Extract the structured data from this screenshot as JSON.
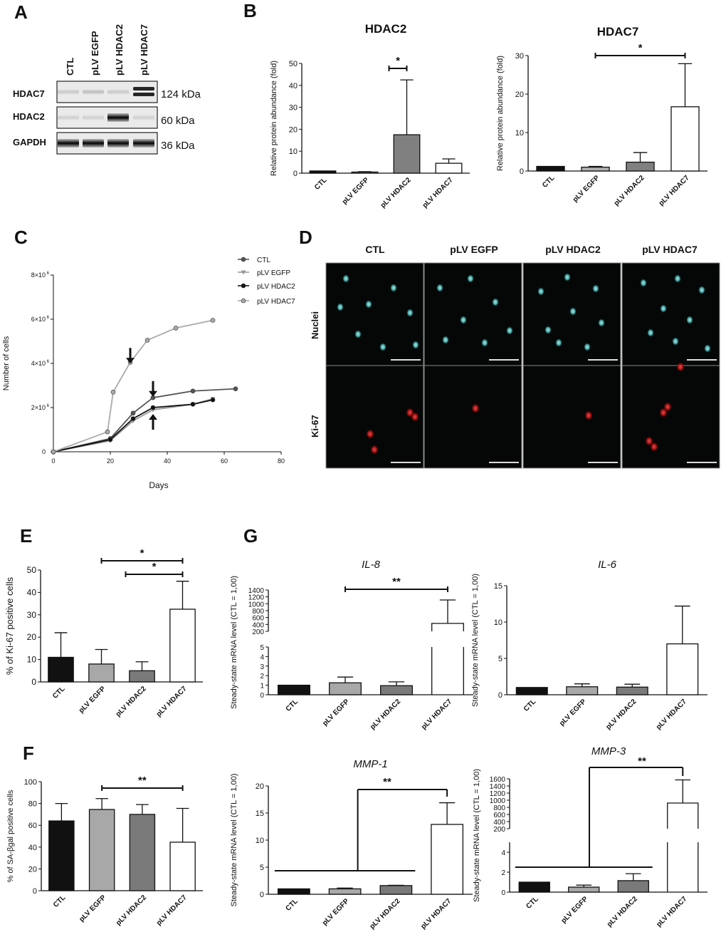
{
  "panels": {
    "A": "A",
    "B": "B",
    "C": "C",
    "D": "D",
    "E": "E",
    "F": "F",
    "G": "G"
  },
  "western_blot": {
    "lanes": [
      "CTL",
      "pLV EGFP",
      "pLV HDAC2",
      "pLV HDAC7"
    ],
    "proteins": [
      "HDAC7",
      "HDAC2",
      "GAPDH"
    ],
    "sizes": [
      "124 kDa",
      "60 kDa",
      "36 kDa"
    ],
    "band_intensity": {
      "HDAC7": [
        0.15,
        0.2,
        0.15,
        1.0
      ],
      "HDAC2": [
        0.1,
        0.1,
        1.0,
        0.1
      ],
      "GAPDH": [
        1.0,
        1.0,
        1.0,
        1.0
      ]
    }
  },
  "immunofluorescence": {
    "columns": [
      "CTL",
      "pLV EGFP",
      "pLV HDAC2",
      "pLV HDAC7"
    ],
    "rows": [
      "Nuclei",
      "Ki-67"
    ]
  },
  "chart_data": [
    {
      "id": "B-HDAC2",
      "type": "bar",
      "title": "HDAC2",
      "ylabel": "Relative protein abundance (fold)",
      "categories": [
        "CTL",
        "pLV EGFP",
        "pLV HDAC2",
        "pLV HDAC7"
      ],
      "values": [
        1,
        0.5,
        17.5,
        4.5
      ],
      "errors": [
        0,
        0.2,
        25,
        2
      ],
      "ylim": [
        0,
        50
      ],
      "yticks": [
        0,
        10,
        20,
        30,
        40,
        50
      ],
      "colors": [
        "#111111",
        "#b0b0b0",
        "#808080",
        "#ffffff"
      ],
      "significance": [
        {
          "from": 1,
          "to": 2,
          "label": "*"
        }
      ]
    },
    {
      "id": "B-HDAC7",
      "type": "bar",
      "title": "HDAC7",
      "ylabel": "Relative protein abundance (fold)",
      "categories": [
        "CTL",
        "pLV EGFP",
        "pLV HDAC2",
        "pLV HDAC7"
      ],
      "values": [
        1.2,
        1,
        2.3,
        16.7
      ],
      "errors": [
        0,
        0.2,
        2.5,
        11.2
      ],
      "ylim": [
        0,
        30
      ],
      "yticks": [
        0,
        10,
        20,
        30
      ],
      "colors": [
        "#111111",
        "#b0b0b0",
        "#808080",
        "#ffffff"
      ],
      "significance": [
        {
          "from": 1,
          "to": 3,
          "label": "*"
        }
      ]
    },
    {
      "id": "C",
      "type": "line",
      "xlabel": "Days",
      "ylabel": "Number of cells",
      "xlim": [
        0,
        80
      ],
      "xticks": [
        0,
        20,
        40,
        60,
        80
      ],
      "ylim": [
        0,
        8000000
      ],
      "ytick_values": [
        0,
        2000000,
        4000000,
        6000000,
        8000000
      ],
      "ytick_labels": [
        {
          "base": "0",
          "exp": ""
        },
        {
          "base": "2×10",
          "exp": "6"
        },
        {
          "base": "4×10",
          "exp": "6"
        },
        {
          "base": "6×10",
          "exp": "6"
        },
        {
          "base": "8×10",
          "exp": "6"
        }
      ],
      "series": [
        {
          "name": "CTL",
          "color": "#555555",
          "marker": "circle",
          "x": [
            0,
            20,
            28,
            35,
            49,
            64
          ],
          "y": [
            0,
            600000,
            1750000,
            2450000,
            2750000,
            2850000
          ]
        },
        {
          "name": "pLV EGFP",
          "color": "#999999",
          "marker": "triangle",
          "x": [
            0,
            20,
            28,
            35,
            49,
            56
          ],
          "y": [
            0,
            500000,
            1400000,
            1900000,
            2150000,
            2400000
          ]
        },
        {
          "name": "pLV HDAC2",
          "color": "#111111",
          "marker": "circle",
          "x": [
            0,
            20,
            28,
            35,
            49,
            56
          ],
          "y": [
            0,
            550000,
            1500000,
            2000000,
            2150000,
            2350000
          ]
        },
        {
          "name": "pLV HDAC7",
          "color": "#aaaaaa",
          "marker": "circle",
          "x": [
            0,
            19,
            21,
            27,
            33,
            43,
            56
          ],
          "y": [
            0,
            900000,
            2700000,
            4050000,
            5050000,
            5600000,
            5950000
          ]
        }
      ],
      "arrows": [
        {
          "x": 27,
          "y": 4700000,
          "dir": "down"
        },
        {
          "x": 35,
          "y": 3200000,
          "dir": "down"
        },
        {
          "x": 35,
          "y": 1000000,
          "dir": "up"
        }
      ]
    },
    {
      "id": "E",
      "type": "bar",
      "ylabel": "% of Ki-67 positive cells",
      "categories": [
        "CTL",
        "pLV EGFP",
        "pLV HDAC2",
        "pLV HDAC7"
      ],
      "values": [
        11,
        8,
        5,
        32.5
      ],
      "errors": [
        11,
        6.5,
        4,
        12.5
      ],
      "ylim": [
        0,
        50
      ],
      "yticks": [
        0,
        10,
        20,
        30,
        40,
        50
      ],
      "colors": [
        "#111111",
        "#a8a8a8",
        "#7a7a7a",
        "#ffffff"
      ],
      "significance": [
        {
          "from": 1,
          "to": 3,
          "label": "*"
        },
        {
          "from": 2,
          "to": 3,
          "label": "*"
        }
      ]
    },
    {
      "id": "F",
      "type": "bar",
      "ylabel": "% of SA-βgal positive cells",
      "categories": [
        "CTL",
        "pLV EGFP",
        "pLV HDAC2",
        "pLV HDAC7"
      ],
      "values": [
        64,
        74.5,
        70,
        44.5
      ],
      "errors": [
        16,
        10,
        9,
        31
      ],
      "ylim": [
        0,
        100
      ],
      "yticks": [
        0,
        20,
        40,
        60,
        80,
        100
      ],
      "colors": [
        "#111111",
        "#a8a8a8",
        "#7a7a7a",
        "#ffffff"
      ],
      "significance": [
        {
          "from": 1,
          "to": 3,
          "label": "**"
        }
      ]
    },
    {
      "id": "G-IL8",
      "type": "bar",
      "title": "IL-8",
      "ylabel": "Steady-state mRNA level (CTL = 1,00)",
      "categories": [
        "CTL",
        "pLV EGFP",
        "pLV HDAC2",
        "pLV HDAC7"
      ],
      "values": [
        1,
        1.25,
        0.95,
        430
      ],
      "errors": [
        0,
        0.6,
        0.4,
        680
      ],
      "broken_axis": true,
      "lower_ylim": [
        0,
        5
      ],
      "lower_yticks": [
        0,
        1,
        2,
        3,
        4,
        5
      ],
      "upper_ylim": [
        200,
        1400
      ],
      "upper_yticks": [
        200,
        400,
        600,
        800,
        1000,
        1200,
        1400
      ],
      "colors": [
        "#111111",
        "#a8a8a8",
        "#7a7a7a",
        "#ffffff"
      ],
      "significance": [
        {
          "from": 1,
          "to": 3,
          "label": "**"
        }
      ]
    },
    {
      "id": "G-IL6",
      "type": "bar",
      "title": "IL-6",
      "ylabel": "Steady-state mRNA level (CTL = 1,00)",
      "categories": [
        "CTL",
        "pLV EGFP",
        "pLV HDAC2",
        "pLV HDAC7"
      ],
      "values": [
        1,
        1.1,
        1.05,
        7
      ],
      "errors": [
        0,
        0.4,
        0.4,
        5.2
      ],
      "ylim": [
        0,
        15
      ],
      "yticks": [
        0,
        5,
        10,
        15
      ],
      "colors": [
        "#111111",
        "#a8a8a8",
        "#7a7a7a",
        "#ffffff"
      ],
      "significance": []
    },
    {
      "id": "G-MMP1",
      "type": "bar",
      "title": "MMP-1",
      "ylabel": "Steady-state mRNA level (CTL = 1,00)",
      "categories": [
        "CTL",
        "pLV EGFP",
        "pLV HDAC2",
        "pLV HDAC7"
      ],
      "values": [
        1,
        1,
        1.6,
        12.9
      ],
      "errors": [
        0,
        0.15,
        0.05,
        4
      ],
      "ylim": [
        0,
        20
      ],
      "yticks": [
        0,
        5,
        10,
        15,
        20
      ],
      "colors": [
        "#111111",
        "#a8a8a8",
        "#7a7a7a",
        "#ffffff"
      ],
      "significance": [
        {
          "group": [
            0,
            2
          ],
          "to": 3,
          "label": "**"
        }
      ]
    },
    {
      "id": "G-MMP3",
      "type": "bar",
      "title": "MMP-3",
      "ylabel": "Steady-state mRNA level (CTL = 1,00)",
      "categories": [
        "CTL",
        "pLV EGFP",
        "pLV HDAC2",
        "pLV HDAC7"
      ],
      "values": [
        1,
        0.5,
        1.15,
        920
      ],
      "errors": [
        0,
        0.2,
        0.7,
        650
      ],
      "broken_axis": true,
      "lower_ylim": [
        0,
        5
      ],
      "lower_yticks": [
        0,
        2,
        4
      ],
      "upper_ylim": [
        200,
        1600
      ],
      "upper_yticks": [
        200,
        400,
        600,
        800,
        1000,
        1200,
        1400,
        1600
      ],
      "colors": [
        "#111111",
        "#a8a8a8",
        "#7a7a7a",
        "#ffffff"
      ],
      "significance": [
        {
          "group": [
            0,
            2
          ],
          "to": 3,
          "label": "**"
        }
      ]
    }
  ]
}
